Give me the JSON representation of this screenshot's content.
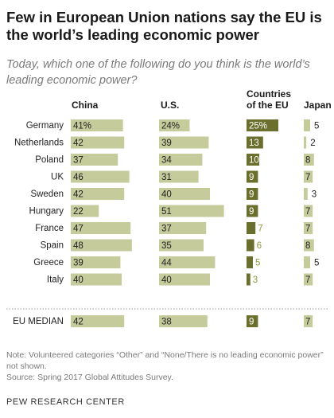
{
  "title": "Few in European Union nations say the EU is the world’s leading economic power",
  "subtitle": "Today, which one of the following do you think is the world’s leading economic power?",
  "columns": [
    "China",
    "U.S.",
    "Countries of the EU",
    "Japan"
  ],
  "note": "Note: Volunteered categories “Other” and “None/There is no leading economic power” not shown.",
  "source": "Source: Spring 2017 Global Attitudes Survey.",
  "credit": "PEW RESEARCH CENTER",
  "colors": {
    "bar": "#c5cb9b",
    "eu_bar": "#6b6f2e",
    "inside_text": "#ffffff",
    "outside_eu_text": "#8f9a3a",
    "separator": "#9a9a9a"
  },
  "chart_data": {
    "type": "bar",
    "unit": "%",
    "categories": [
      "Germany",
      "Netherlands",
      "Poland",
      "UK",
      "Sweden",
      "Hungary",
      "France",
      "Spain",
      "Greece",
      "Italy",
      "EU MEDIAN"
    ],
    "series": [
      {
        "name": "China",
        "values": [
          41,
          42,
          37,
          46,
          42,
          22,
          47,
          48,
          39,
          40,
          42
        ]
      },
      {
        "name": "U.S.",
        "values": [
          24,
          39,
          34,
          31,
          40,
          51,
          37,
          35,
          44,
          40,
          38
        ]
      },
      {
        "name": "Countries of the EU",
        "values": [
          25,
          13,
          10,
          9,
          9,
          9,
          7,
          6,
          5,
          3,
          9
        ]
      },
      {
        "name": "Japan",
        "values": [
          5,
          2,
          8,
          7,
          3,
          7,
          7,
          8,
          5,
          7,
          7
        ]
      }
    ],
    "value_labels_first_row": [
      "41%",
      "24%",
      "25%",
      "5"
    ]
  }
}
